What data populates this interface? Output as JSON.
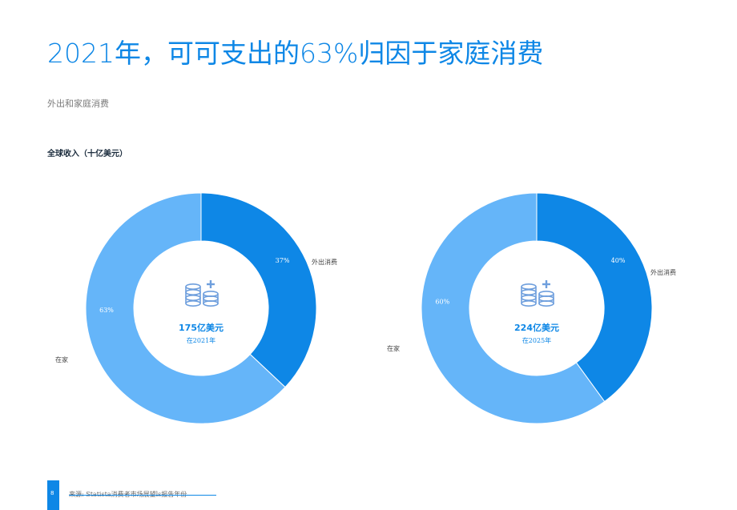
{
  "title": "2021年，可可支出的63%归因于家庭消费",
  "subtitle": "外出和家庭消费",
  "section_title": "全球收入（十亿美元）",
  "colors": {
    "away": "#0e87e6",
    "home": "#65b5f9",
    "icon": "#6f9fdd",
    "accent": "#0e87e6"
  },
  "center_icon": "coin-stack-plus-icon",
  "chart_data": [
    {
      "type": "pie",
      "categories": [
        "外出消费",
        "在家"
      ],
      "values": [
        37,
        63
      ],
      "value_labels": [
        "37%",
        "63%"
      ],
      "center_value": "175亿美元",
      "center_sub": "在2021年"
    },
    {
      "type": "pie",
      "categories": [
        "外出消费",
        "在家"
      ],
      "values": [
        40,
        60
      ],
      "value_labels": [
        "40%",
        "60%"
      ],
      "center_value": "224亿美元",
      "center_sub": "在2025年"
    }
  ],
  "footer": {
    "page": "8",
    "source": "来源: Statista消费者市场展望ls报告年份"
  }
}
